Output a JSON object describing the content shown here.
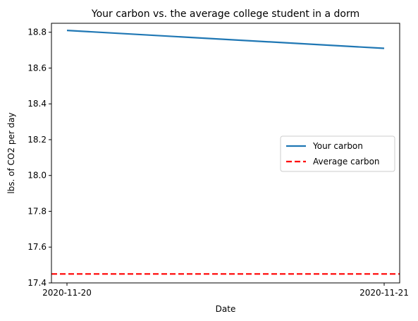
{
  "chart_data": {
    "type": "line",
    "title": "Your carbon vs. the average college student in a dorm",
    "xlabel": "Date",
    "ylabel": "lbs. of CO2 per day",
    "categories": [
      "2020-11-20",
      "2020-11-21"
    ],
    "ylim": [
      17.4,
      18.85
    ],
    "yticks": [
      "17.4",
      "17.6",
      "17.8",
      "18.0",
      "18.2",
      "18.4",
      "18.6",
      "18.8"
    ],
    "grid": false,
    "legend_position": "center-right",
    "series": [
      {
        "name": "Your carbon",
        "values": [
          18.81,
          18.71
        ],
        "color": "#1f77b4",
        "style": "solid"
      }
    ],
    "reference_lines": [
      {
        "name": "Average carbon",
        "value": 17.45,
        "color": "#ff0000",
        "style": "dashed"
      }
    ]
  }
}
